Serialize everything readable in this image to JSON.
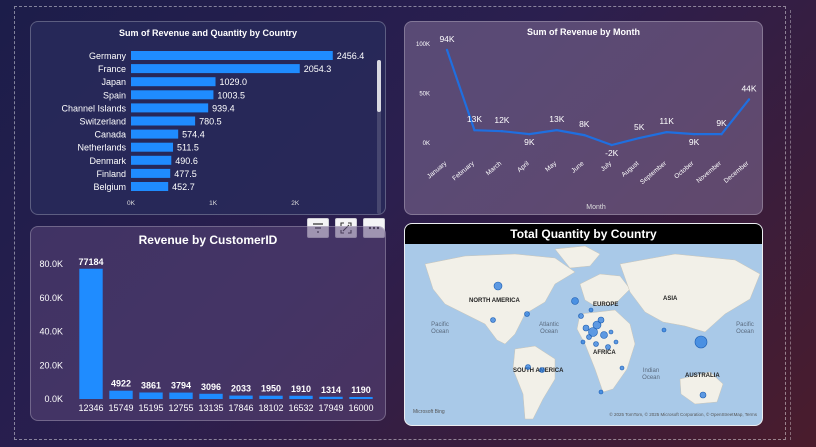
{
  "toolbar": {
    "filter_icon": "filter-icon",
    "focus_icon": "focus-mode-icon",
    "more_icon": "more-options-icon"
  },
  "country_chart": {
    "title": "Sum of Revenue and Quantity by Country",
    "chart_data": {
      "type": "bar",
      "orientation": "horizontal",
      "categories": [
        "Germany",
        "France",
        "Japan",
        "Spain",
        "Channel Islands",
        "Switzerland",
        "Canada",
        "Netherlands",
        "Denmark",
        "Finland",
        "Belgium"
      ],
      "values": [
        2456.4,
        2054.3,
        1029.0,
        1003.5,
        939.4,
        780.5,
        574.4,
        511.5,
        490.6,
        477.5,
        452.7
      ],
      "value_labels": [
        "2456.4",
        "2054.3",
        "1029.0",
        "1003.5",
        "939.4",
        "780.5",
        "574.4",
        "511.5",
        "490.6",
        "477.5",
        "452.7"
      ],
      "x_ticks": [
        "0K",
        "1K",
        "2K"
      ],
      "xlim": [
        0,
        2800
      ],
      "color": "#1f8cff"
    }
  },
  "month_chart": {
    "title": "Sum of Revenue by Month",
    "chart_data": {
      "type": "line",
      "categories": [
        "January",
        "February",
        "March",
        "April",
        "May",
        "June",
        "July",
        "August",
        "September",
        "October",
        "November",
        "December"
      ],
      "values": [
        94000,
        13000,
        12000,
        9000,
        13000,
        8000,
        -2000,
        5000,
        11000,
        9000,
        9000,
        44000
      ],
      "value_labels": [
        "94K",
        "13K",
        "12K",
        "9K",
        "13K",
        "8K",
        "-2K",
        "5K",
        "11K",
        "9K",
        "9K",
        "44K"
      ],
      "y_ticks": [
        "100K",
        "50K",
        "0K"
      ],
      "ylim": [
        -5000,
        100000
      ],
      "xlabel": "Month",
      "color": "#1f6fe0"
    }
  },
  "customer_chart": {
    "title": "Revenue by CustomerID",
    "chart_data": {
      "type": "bar",
      "categories": [
        "12346",
        "15749",
        "15195",
        "12755",
        "13135",
        "17846",
        "18102",
        "16532",
        "17949",
        "16000"
      ],
      "values": [
        77184,
        4922,
        3861,
        3794,
        3096,
        2033,
        1950,
        1910,
        1314,
        1190
      ],
      "value_labels": [
        "77184",
        "4922",
        "3861",
        "3794",
        "3096",
        "2033",
        "1950",
        "1910",
        "1314",
        "1190"
      ],
      "y_ticks": [
        "80.0K",
        "60.0K",
        "40.0K",
        "20.0K",
        "0.0K"
      ],
      "ylim": [
        0,
        80000
      ],
      "color": "#1f8cff"
    }
  },
  "map": {
    "title": "Total Quantity by Country",
    "labels": {
      "north_america": "NORTH AMERICA",
      "europe": "EUROPE",
      "asia": "ASIA",
      "africa": "AFRICA",
      "south_america": "SOUTH AMERICA",
      "australia": "AUSTRALIA",
      "pacific_left_1": "Pacific",
      "pacific_left_2": "Ocean",
      "atlantic_1": "Atlantic",
      "atlantic_2": "Ocean",
      "indian_1": "Indian",
      "indian_2": "Ocean",
      "pacific_right_1": "Pacific",
      "pacific_right_2": "Ocean"
    },
    "attribution": "© 2025 TomTom, © 2025 Microsoft Corporation, © OpenStreetMap, Terms",
    "brand": "Microsoft Bing",
    "bubble_color": "#2b7ce0"
  }
}
